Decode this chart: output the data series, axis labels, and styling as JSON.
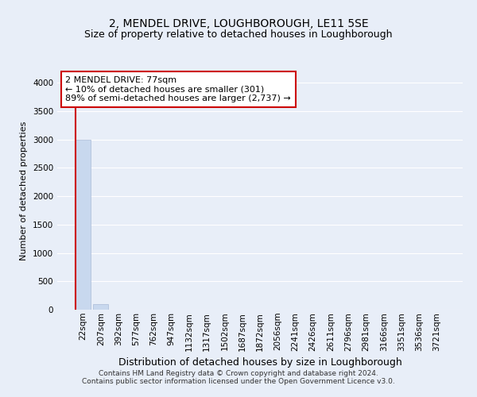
{
  "title": "2, MENDEL DRIVE, LOUGHBOROUGH, LE11 5SE",
  "subtitle": "Size of property relative to detached houses in Loughborough",
  "xlabel": "Distribution of detached houses by size in Loughborough",
  "ylabel": "Number of detached properties",
  "footer_line1": "Contains HM Land Registry data © Crown copyright and database right 2024.",
  "footer_line2": "Contains public sector information licensed under the Open Government Licence v3.0.",
  "categories": [
    "22sqm",
    "207sqm",
    "392sqm",
    "577sqm",
    "762sqm",
    "947sqm",
    "1132sqm",
    "1317sqm",
    "1502sqm",
    "1687sqm",
    "1872sqm",
    "2056sqm",
    "2241sqm",
    "2426sqm",
    "2611sqm",
    "2796sqm",
    "2981sqm",
    "3166sqm",
    "3351sqm",
    "3536sqm",
    "3721sqm"
  ],
  "values": [
    3000,
    105,
    5,
    3,
    2,
    1,
    1,
    1,
    0,
    0,
    0,
    0,
    0,
    0,
    0,
    0,
    0,
    0,
    0,
    0,
    0
  ],
  "bar_color": "#c8d8ee",
  "bar_edge_color": "#aabbd8",
  "ylim": [
    0,
    4200
  ],
  "yticks": [
    0,
    500,
    1000,
    1500,
    2000,
    2500,
    3000,
    3500,
    4000
  ],
  "annotation_line1": "2 MENDEL DRIVE: 77sqm",
  "annotation_line2": "← 10% of detached houses are smaller (301)",
  "annotation_line3": "89% of semi-detached houses are larger (2,737) →",
  "annotation_box_facecolor": "#ffffff",
  "annotation_box_edgecolor": "#cc0000",
  "red_line_color": "#cc0000",
  "bg_color": "#e8eef8",
  "plot_bg_color": "#e8eef8",
  "grid_color": "#ffffff",
  "title_fontsize": 10,
  "subtitle_fontsize": 9,
  "ylabel_fontsize": 8,
  "xlabel_fontsize": 9,
  "tick_fontsize": 7.5,
  "annot_fontsize": 8
}
